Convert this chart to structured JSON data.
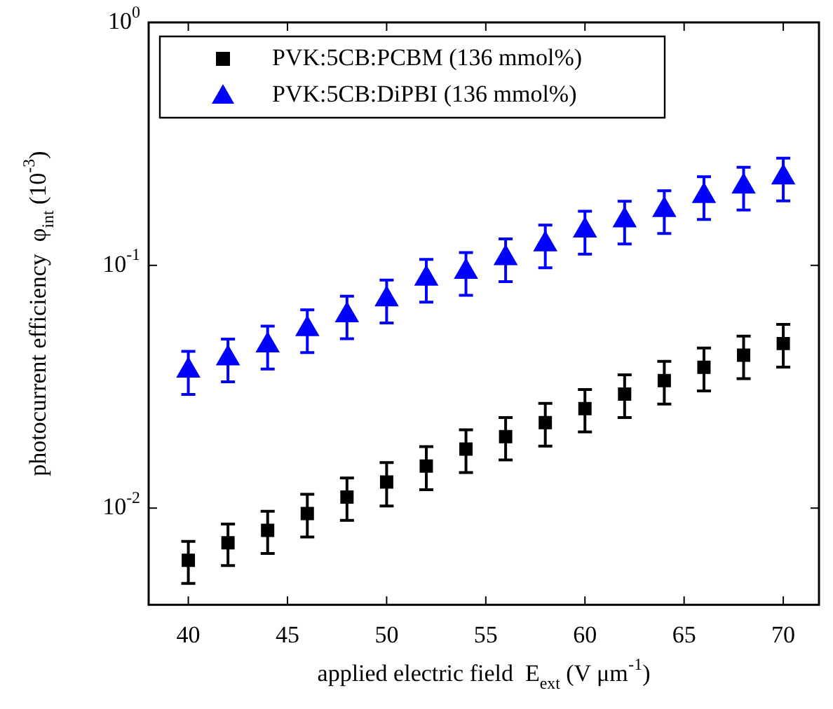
{
  "chart_data": {
    "type": "scatter",
    "xlabel": "applied electric field  E$_{ext}$ (V μm$^{-1}$)",
    "ylabel": "photocurrent efficiency  φ$_{int}$ (10$^{-3}$)",
    "x": [
      40,
      42,
      44,
      46,
      48,
      50,
      52,
      54,
      56,
      58,
      60,
      62,
      64,
      66,
      68,
      70
    ],
    "series": [
      {
        "name": "PVK:5CB:PCBM (136 mmol%)",
        "color": "#000000",
        "marker": "square",
        "values": [
          0.0061,
          0.0072,
          0.0081,
          0.0095,
          0.0111,
          0.0128,
          0.0149,
          0.0175,
          0.0197,
          0.0225,
          0.0257,
          0.0295,
          0.0335,
          0.038,
          0.0426,
          0.0476
        ],
        "errors": [
          0.0012,
          0.0014,
          0.0016,
          0.0019,
          0.0022,
          0.0026,
          0.003,
          0.0035,
          0.0039,
          0.0045,
          0.0051,
          0.0059,
          0.0067,
          0.0076,
          0.0085,
          0.0095
        ]
      },
      {
        "name": "PVK:5CB:DiPBI (136 mmol%)",
        "color": "#0000ff",
        "marker": "triangle",
        "values": [
          0.0368,
          0.0414,
          0.0468,
          0.0546,
          0.0622,
          0.0724,
          0.0881,
          0.094,
          0.107,
          0.122,
          0.139,
          0.153,
          0.169,
          0.193,
          0.211,
          0.23
        ],
        "errors": [
          0.0074,
          0.0083,
          0.0094,
          0.0109,
          0.0124,
          0.0145,
          0.0176,
          0.0188,
          0.0214,
          0.0244,
          0.0278,
          0.0306,
          0.0338,
          0.0386,
          0.0422,
          0.046
        ]
      }
    ],
    "log": "y",
    "xlim": [
      38,
      71.8
    ],
    "ylim": [
      0.004,
      1
    ],
    "xticks": [
      40,
      45,
      50,
      55,
      60,
      65,
      70
    ],
    "yticks": [
      {
        "value": 0.01,
        "label": "10$^{-2}$"
      },
      {
        "value": 0.1,
        "label": "10$^{-1}$"
      },
      {
        "value": 1,
        "label": "10$^{0}$"
      }
    ],
    "legend": "top left",
    "grid": false
  }
}
